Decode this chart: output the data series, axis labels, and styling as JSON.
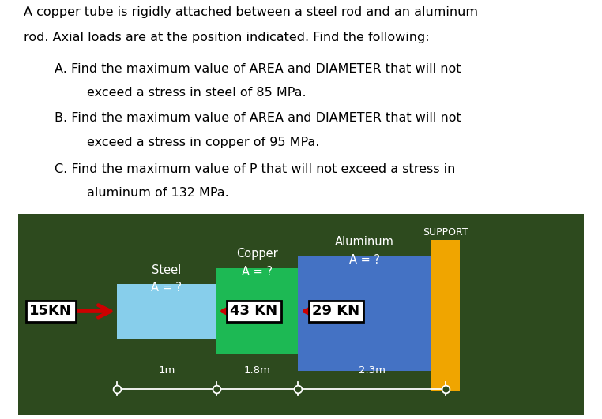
{
  "bg_color": "#2d4a1e",
  "fig_bg": "#ffffff",
  "steel_color": "#87CEEB",
  "copper_color": "#1db954",
  "aluminum_color": "#4472c4",
  "support_color": "#f0a500",
  "arrow_color": "#cc0000",
  "line1": "A copper tube is rigidly attached between a steel rod and an aluminum",
  "line2": "rod. Axial loads are at the position indicated. Find the following:",
  "lineA1": "A. Find the maximum value of AREA and DIAMETER that will not",
  "lineA2": "exceed a stress in steel of 85 MPa.",
  "lineB1": "B. Find the maximum value of AREA and DIAMETER that will not",
  "lineB2": "exceed a stress in copper of 95 MPa.",
  "lineC1": "C. Find the maximum value of P that will not exceed a stress in",
  "lineC2": "aluminum of 132 MPa."
}
